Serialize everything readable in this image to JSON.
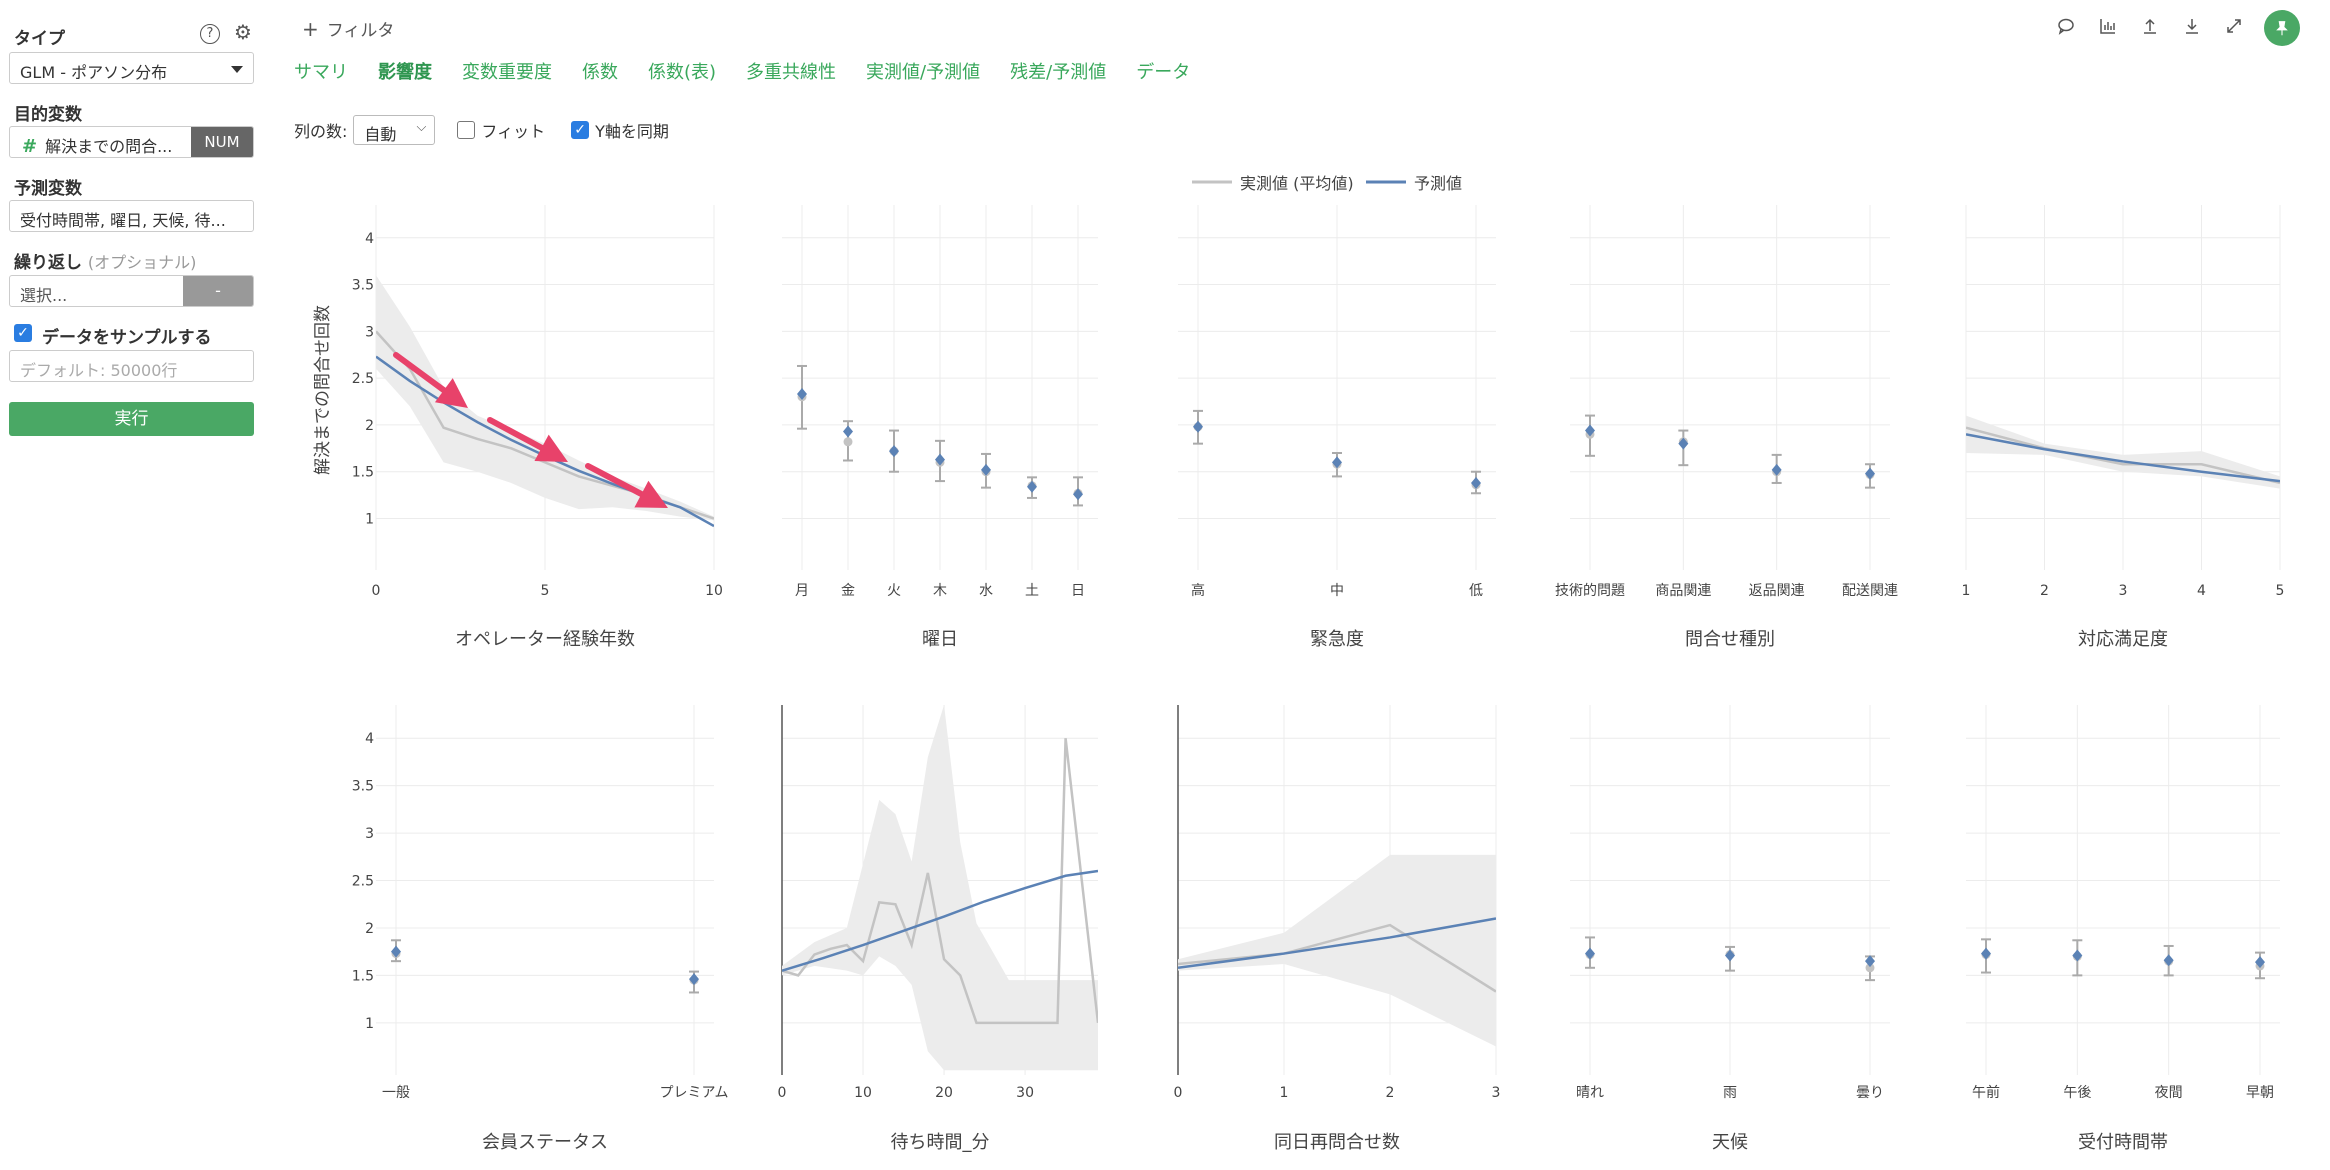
{
  "left_panel": {
    "type_label": "タイプ",
    "type_value": "GLM - ポアソン分布",
    "target_label": "目的変数",
    "target_value": "解決までの問合...",
    "target_badge": "NUM",
    "predictors_label": "予測変数",
    "predictors_value": "受付時間帯, 曜日, 天候, 待...",
    "repeat_label": "繰り返し",
    "repeat_optional": "(オプショナル)",
    "repeat_placeholder": "選択...",
    "repeat_button": "-",
    "sample_label": "データをサンプルする",
    "sample_placeholder": "デフォルト: 50000行",
    "run_label": "実行"
  },
  "topbar": {
    "filter_label": "フィルタ"
  },
  "tabs": [
    "サマリ",
    "影響度",
    "変数重要度",
    "係数",
    "係数(表)",
    "多重共線性",
    "実測値/予測値",
    "残差/予測値",
    "データ"
  ],
  "active_tab": "影響度",
  "options": {
    "columns_label": "列の数:",
    "columns_value": "自動",
    "fit_label": "フィット",
    "sync_y_label": "Y軸を同期"
  },
  "colors": {
    "actual": "#c3c3c3",
    "predicted": "#5b82b5",
    "band": "#ececec",
    "arrow": "#e8426a",
    "accent": "#4aa865"
  },
  "chart_data": {
    "type": "line",
    "legend": [
      "実測値 (平均値)",
      "予測値"
    ],
    "ylabel": "解決までの問合せ回数",
    "ylim": [
      0.45,
      4.35
    ],
    "yticks": [
      1,
      1.5,
      2,
      2.5,
      3,
      3.5,
      4
    ],
    "panels": [
      {
        "title": "オペレーター経験年数",
        "kind": "numeric",
        "xlim": [
          0,
          10
        ],
        "xticks": [
          0,
          5,
          10
        ],
        "actual": [
          [
            0,
            3.0
          ],
          [
            1,
            2.6
          ],
          [
            2,
            1.97
          ],
          [
            3,
            1.85
          ],
          [
            4,
            1.75
          ],
          [
            5,
            1.6
          ],
          [
            6,
            1.45
          ],
          [
            7,
            1.35
          ],
          [
            8,
            1.25
          ],
          [
            9,
            1.12
          ],
          [
            10,
            1.0
          ]
        ],
        "predicted": [
          [
            0,
            2.73
          ],
          [
            1,
            2.47
          ],
          [
            2,
            2.24
          ],
          [
            3,
            2.03
          ],
          [
            4,
            1.84
          ],
          [
            5,
            1.67
          ],
          [
            6,
            1.51
          ],
          [
            7,
            1.37
          ],
          [
            8,
            1.24
          ],
          [
            9,
            1.12
          ],
          [
            10,
            0.92
          ]
        ],
        "band_upper": [
          [
            0,
            3.6
          ],
          [
            1,
            3.05
          ],
          [
            2,
            2.4
          ],
          [
            3,
            2.1
          ],
          [
            4,
            1.95
          ],
          [
            5,
            1.8
          ],
          [
            6,
            1.62
          ],
          [
            7,
            1.45
          ],
          [
            8,
            1.32
          ],
          [
            9,
            1.18
          ],
          [
            10,
            1.02
          ]
        ],
        "band_lower": [
          [
            0,
            2.6
          ],
          [
            1,
            2.2
          ],
          [
            2,
            1.6
          ],
          [
            3,
            1.5
          ],
          [
            4,
            1.38
          ],
          [
            5,
            1.22
          ],
          [
            6,
            1.1
          ],
          [
            7,
            1.12
          ],
          [
            8,
            1.08
          ],
          [
            9,
            1.02
          ],
          [
            10,
            0.98
          ]
        ],
        "arrows": true
      },
      {
        "title": "曜日",
        "kind": "categorical",
        "categories": [
          "月",
          "金",
          "火",
          "木",
          "水",
          "土",
          "日"
        ],
        "predicted": [
          2.33,
          1.93,
          1.72,
          1.63,
          1.52,
          1.34,
          1.26
        ],
        "actual": [
          2.3,
          1.82,
          1.72,
          1.6,
          1.5,
          1.35,
          1.27
        ],
        "err_low": [
          1.96,
          1.62,
          1.5,
          1.4,
          1.33,
          1.22,
          1.14
        ],
        "err_high": [
          2.63,
          2.04,
          1.94,
          1.83,
          1.69,
          1.44,
          1.44
        ]
      },
      {
        "title": "緊急度",
        "kind": "categorical",
        "categories": [
          "高",
          "中",
          "低"
        ],
        "predicted": [
          1.98,
          1.6,
          1.38
        ],
        "actual": [
          1.98,
          1.58,
          1.36
        ],
        "err_low": [
          1.8,
          1.45,
          1.27
        ],
        "err_high": [
          2.15,
          1.7,
          1.5
        ]
      },
      {
        "title": "問合せ種別",
        "kind": "categorical",
        "categories": [
          "技術的問題",
          "商品関連",
          "返品関連",
          "配送関連"
        ],
        "predicted": [
          1.94,
          1.8,
          1.52,
          1.48
        ],
        "actual": [
          1.9,
          1.82,
          1.5,
          1.47
        ],
        "err_low": [
          1.67,
          1.57,
          1.38,
          1.33
        ],
        "err_high": [
          2.1,
          1.94,
          1.68,
          1.58
        ]
      },
      {
        "title": "対応満足度",
        "kind": "numeric",
        "xlim": [
          1,
          5
        ],
        "xticks": [
          1,
          2,
          3,
          4,
          5
        ],
        "actual": [
          [
            1,
            1.97
          ],
          [
            2,
            1.75
          ],
          [
            3,
            1.58
          ],
          [
            4,
            1.58
          ],
          [
            5,
            1.38
          ]
        ],
        "predicted": [
          [
            1,
            1.9
          ],
          [
            2,
            1.74
          ],
          [
            3,
            1.61
          ],
          [
            4,
            1.5
          ],
          [
            5,
            1.4
          ]
        ],
        "band_upper": [
          [
            1,
            2.1
          ],
          [
            2,
            1.8
          ],
          [
            3,
            1.68
          ],
          [
            4,
            1.72
          ],
          [
            5,
            1.45
          ]
        ],
        "band_lower": [
          [
            1,
            1.7
          ],
          [
            2,
            1.68
          ],
          [
            3,
            1.5
          ],
          [
            4,
            1.45
          ],
          [
            5,
            1.32
          ]
        ]
      },
      {
        "title": "会員ステータス",
        "kind": "categorical",
        "categories": [
          "一般",
          "プレミアム"
        ],
        "predicted": [
          1.75,
          1.46
        ],
        "actual": [
          1.73,
          1.45
        ],
        "err_low": [
          1.65,
          1.32
        ],
        "err_high": [
          1.87,
          1.54
        ]
      },
      {
        "title": "待ち時間_分",
        "kind": "numeric",
        "xlim": [
          0,
          39
        ],
        "xticks": [
          0,
          10,
          20,
          30
        ],
        "actual": [
          [
            0,
            1.55
          ],
          [
            2,
            1.5
          ],
          [
            4,
            1.72
          ],
          [
            6,
            1.78
          ],
          [
            8,
            1.82
          ],
          [
            10,
            1.65
          ],
          [
            12,
            2.27
          ],
          [
            14,
            2.25
          ],
          [
            16,
            1.82
          ],
          [
            18,
            2.58
          ],
          [
            20,
            1.67
          ],
          [
            22,
            1.5
          ],
          [
            24,
            1.0
          ],
          [
            34,
            1.0
          ],
          [
            35,
            4.0
          ],
          [
            37,
            2.5
          ],
          [
            39,
            1.0
          ]
        ],
        "predicted": [
          [
            0,
            1.55
          ],
          [
            5,
            1.68
          ],
          [
            10,
            1.82
          ],
          [
            15,
            1.97
          ],
          [
            20,
            2.12
          ],
          [
            25,
            2.28
          ],
          [
            30,
            2.42
          ],
          [
            35,
            2.55
          ],
          [
            39,
            2.6
          ]
        ],
        "band_upper": [
          [
            0,
            1.6
          ],
          [
            4,
            1.85
          ],
          [
            8,
            2.0
          ],
          [
            12,
            3.35
          ],
          [
            14,
            3.2
          ],
          [
            16,
            2.7
          ],
          [
            18,
            3.8
          ],
          [
            20,
            4.35
          ],
          [
            22,
            2.9
          ],
          [
            24,
            2.05
          ],
          [
            26,
            1.75
          ],
          [
            28,
            1.45
          ],
          [
            39,
            1.45
          ]
        ],
        "band_lower": [
          [
            0,
            1.5
          ],
          [
            4,
            1.6
          ],
          [
            8,
            1.55
          ],
          [
            10,
            1.5
          ],
          [
            12,
            1.7
          ],
          [
            14,
            1.6
          ],
          [
            16,
            1.4
          ],
          [
            18,
            0.7
          ],
          [
            20,
            0.5
          ],
          [
            22,
            0.5
          ],
          [
            39,
            0.5
          ]
        ]
      },
      {
        "title": "同日再問合せ数",
        "kind": "numeric",
        "xlim": [
          0,
          3
        ],
        "xticks": [
          0,
          1,
          2,
          3
        ],
        "actual": [
          [
            0,
            1.62
          ],
          [
            1,
            1.73
          ],
          [
            2,
            2.03
          ],
          [
            3,
            1.33
          ]
        ],
        "predicted": [
          [
            0,
            1.58
          ],
          [
            1,
            1.73
          ],
          [
            2,
            1.9
          ],
          [
            3,
            2.1
          ]
        ],
        "band_upper": [
          [
            0,
            1.67
          ],
          [
            1,
            1.95
          ],
          [
            2,
            2.77
          ],
          [
            3,
            2.77
          ]
        ],
        "band_lower": [
          [
            0,
            1.55
          ],
          [
            1,
            1.62
          ],
          [
            2,
            1.3
          ],
          [
            3,
            0.75
          ]
        ]
      },
      {
        "title": "天候",
        "kind": "categorical",
        "categories": [
          "晴れ",
          "雨",
          "曇り"
        ],
        "predicted": [
          1.73,
          1.71,
          1.65
        ],
        "actual": [
          1.72,
          1.72,
          1.58
        ],
        "err_low": [
          1.58,
          1.55,
          1.45
        ],
        "err_high": [
          1.9,
          1.8,
          1.7
        ]
      },
      {
        "title": "受付時間帯",
        "kind": "categorical",
        "categories": [
          "午前",
          "午後",
          "夜間",
          "早朝"
        ],
        "predicted": [
          1.73,
          1.71,
          1.66,
          1.64
        ],
        "actual": [
          1.72,
          1.7,
          1.65,
          1.6
        ],
        "err_low": [
          1.53,
          1.5,
          1.5,
          1.47
        ],
        "err_high": [
          1.88,
          1.87,
          1.81,
          1.74
        ]
      }
    ]
  }
}
